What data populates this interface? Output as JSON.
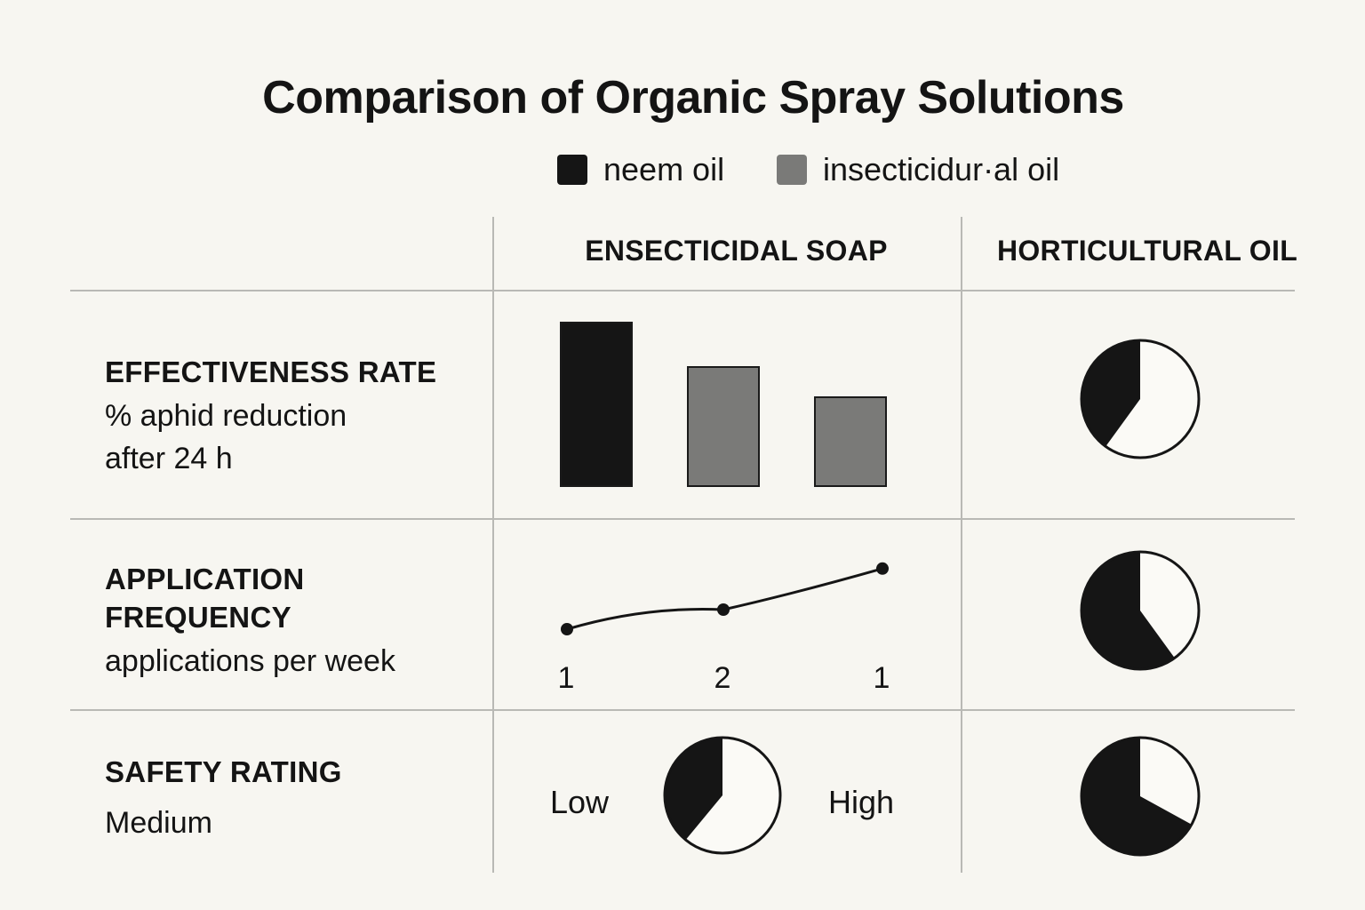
{
  "title": "Comparison of Organic Spray Solutions",
  "legend": [
    {
      "label": "neem oil",
      "color": "#151515"
    },
    {
      "label": "insecticidur·al oil",
      "color": "#7a7a78"
    }
  ],
  "columns": [
    "ENSECTICIDAL SOAP",
    "HORTICULTURAL OIL"
  ],
  "rows": [
    {
      "title": "EFFECTIVENESS RATE",
      "subtitle_lines": [
        "% aphid reduction",
        "after 24 h"
      ]
    },
    {
      "title_lines": [
        "APPLICATION",
        "FREQUENCY"
      ],
      "subtitle": "applications per week"
    },
    {
      "title": "SAFETY RATING",
      "subtitle": "Medium"
    }
  ],
  "chart_data": [
    {
      "type": "bar",
      "column": "ENSECTICIDAL SOAP",
      "row": "EFFECTIVENESS RATE",
      "values": [
        100,
        73,
        55
      ],
      "colors": [
        "#151515",
        "#7a7a78",
        "#7a7a78"
      ]
    },
    {
      "type": "line",
      "column": "ENSECTICIDAL SOAP",
      "row": "APPLICATION FREQUENCY",
      "x_tick_labels": [
        "1",
        "2",
        "1"
      ],
      "values": [
        1,
        2,
        4.1
      ]
    },
    {
      "type": "pie",
      "column": "ENSECTICIDAL SOAP",
      "row": "SAFETY RATING",
      "filled_fraction": 0.39,
      "low_label": "Low",
      "high_label": "High"
    },
    {
      "type": "pie",
      "column": "HORTICULTURAL OIL",
      "row": "EFFECTIVENESS RATE",
      "filled_fraction": 0.4
    },
    {
      "type": "pie",
      "column": "HORTICULTURAL OIL",
      "row": "APPLICATION FREQUENCY",
      "filled_fraction": 0.6
    },
    {
      "type": "pie",
      "column": "HORTICULTURAL OIL",
      "row": "SAFETY RATING",
      "filled_fraction": 0.67
    }
  ]
}
